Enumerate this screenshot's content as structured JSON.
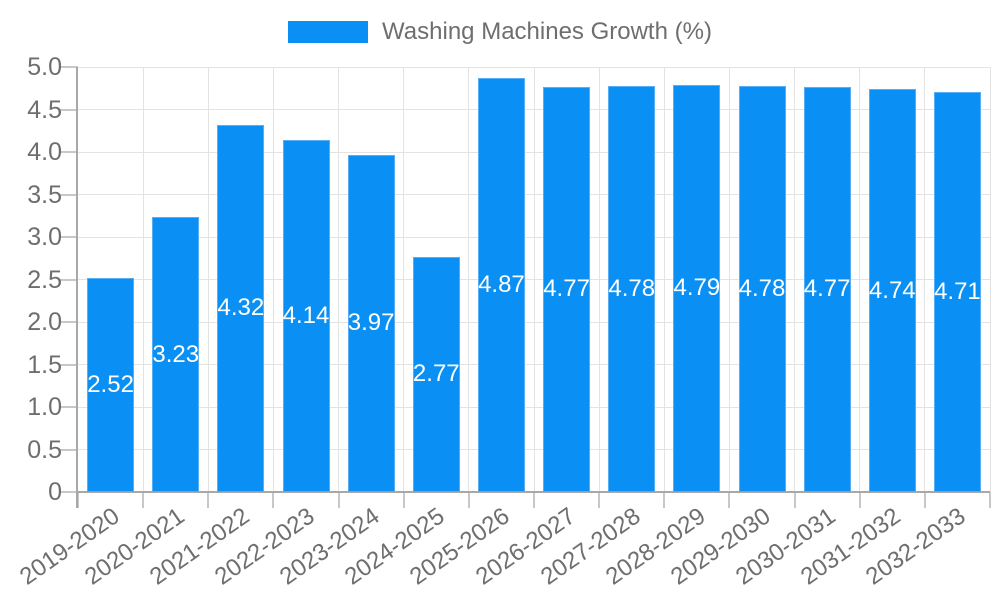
{
  "chart": {
    "legend": {
      "position": "top",
      "swatch": "blue-rect"
    },
    "colors": {
      "bar": "#0A90F4",
      "bar_border": "#58AEF5",
      "grid": "#E3E3E3",
      "axis": "#A8A8A8",
      "tick": "#C8C8C8",
      "label_text": "#6E6E6E",
      "value_text": "#FFFFFF",
      "background": "#FFFFFF"
    }
  },
  "chart_data": {
    "type": "bar",
    "title": "Washing Machines Growth (%)",
    "xlabel": "",
    "ylabel": "",
    "categories": [
      "2019-2020",
      "2020-2021",
      "2021-2022",
      "2022-2023",
      "2023-2024",
      "2024-2025",
      "2025-2026",
      "2026-2027",
      "2027-2028",
      "2028-2029",
      "2029-2030",
      "2030-2031",
      "2031-2032",
      "2032-2033"
    ],
    "values": [
      2.52,
      3.23,
      4.32,
      4.14,
      3.97,
      2.77,
      4.87,
      4.77,
      4.78,
      4.79,
      4.78,
      4.77,
      4.74,
      4.71
    ],
    "value_labels": [
      "2.52",
      "3.23",
      "4.32",
      "4.14",
      "3.97",
      "2.77",
      "4.87",
      "4.77",
      "4.78",
      "4.79",
      "4.78",
      "4.77",
      "4.74",
      "4.71"
    ],
    "ylim": [
      0,
      5
    ],
    "ytick_step": 0.5,
    "ytick_labels": [
      "0",
      "0.5",
      "1.0",
      "1.5",
      "2.0",
      "2.5",
      "3.0",
      "3.5",
      "4.0",
      "4.5",
      "5.0"
    ],
    "grid": true,
    "legend_position": "top",
    "value_label_position": "inside-center",
    "xtick_rotation_deg": -35
  }
}
